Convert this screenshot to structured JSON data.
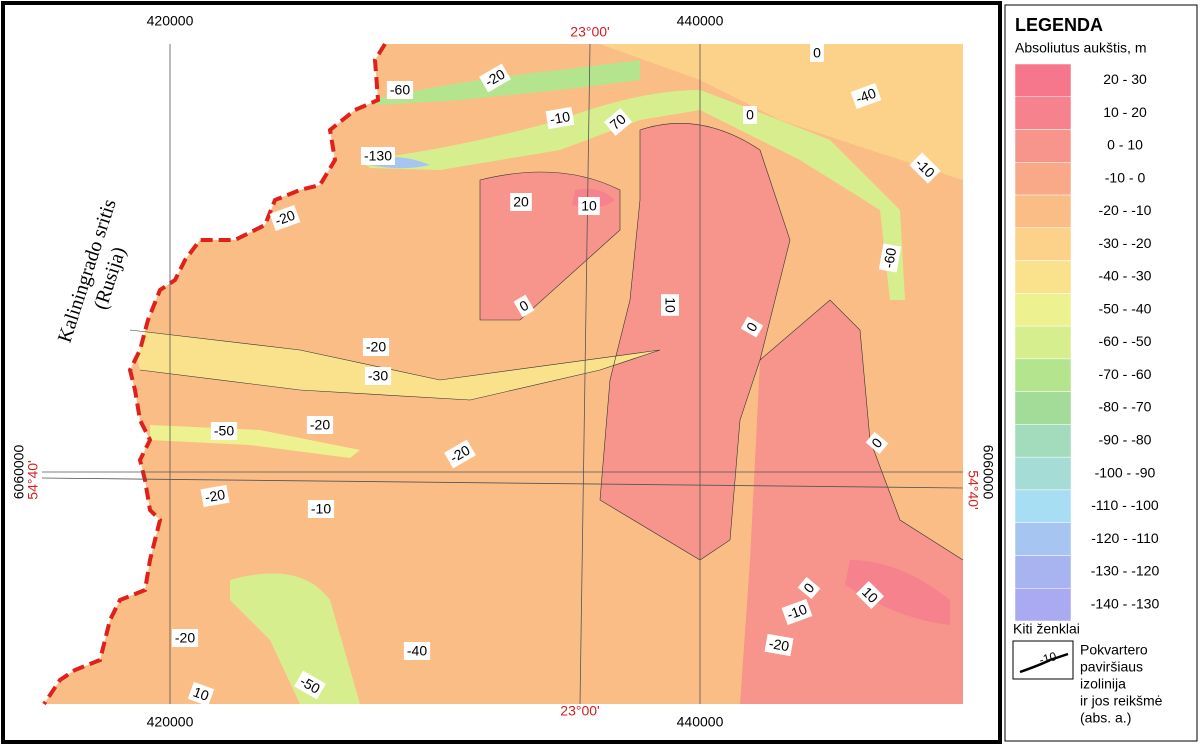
{
  "map": {
    "region_label": [
      "Kaliningrado sritis",
      "(Rusija)"
    ],
    "grid_top": [
      "420000",
      "23°00'",
      "440000"
    ],
    "grid_bottom": [
      "420000",
      "23°00'",
      "440000"
    ],
    "grid_left": [
      "6060000",
      "54°40'"
    ],
    "grid_right": [
      "6060000",
      "54°40'"
    ],
    "contour_labels": [
      "-20",
      "-60",
      "0",
      "-40",
      "0",
      "-10",
      "70",
      "-130",
      "-10",
      "20",
      "10",
      "-20",
      "-60",
      "0",
      "10",
      "0",
      "-20",
      "-30",
      "-20",
      "-50",
      "0",
      "-20",
      "-20",
      "-10",
      "0",
      "10",
      "-10",
      "-20",
      "-20",
      "-40",
      "-50",
      "10"
    ]
  },
  "legend": {
    "title": "LEGENDA",
    "subtitle": "Absoliutus aukštis, m",
    "items": [
      {
        "label": "20 - 30",
        "color": "#f6768c"
      },
      {
        "label": "10 - 20",
        "color": "#f6828e"
      },
      {
        "label": "0 - 10",
        "color": "#f7958c"
      },
      {
        "label": "-10 - 0",
        "color": "#f9a988"
      },
      {
        "label": "-20 - -10",
        "color": "#fbbd86"
      },
      {
        "label": "-30 - -20",
        "color": "#fcd189"
      },
      {
        "label": "-40 - -30",
        "color": "#fae28c"
      },
      {
        "label": "-50 - -40",
        "color": "#eef190"
      },
      {
        "label": "-60 - -50",
        "color": "#d7ee8e"
      },
      {
        "label": "-70 - -60",
        "color": "#b5e48e"
      },
      {
        "label": "-80 - -70",
        "color": "#a2dc98"
      },
      {
        "label": "-90 - -80",
        "color": "#a3dbbd"
      },
      {
        "label": "-100 - -90",
        "color": "#a5dcd6"
      },
      {
        "label": "-110 - -100",
        "color": "#a8def4"
      },
      {
        "label": "-120 - -110",
        "color": "#a6c6f1"
      },
      {
        "label": "-130 - -120",
        "color": "#a8b4f0"
      },
      {
        "label": "-140 - -130",
        "color": "#aaaaf2"
      }
    ],
    "other_title": "Kiti ženklai",
    "symbol_value": "-10",
    "symbol_text": [
      "Pokvartero",
      "paviršiaus",
      "izolinija",
      "ir jos reikšmė",
      "(abs. a.)"
    ]
  }
}
